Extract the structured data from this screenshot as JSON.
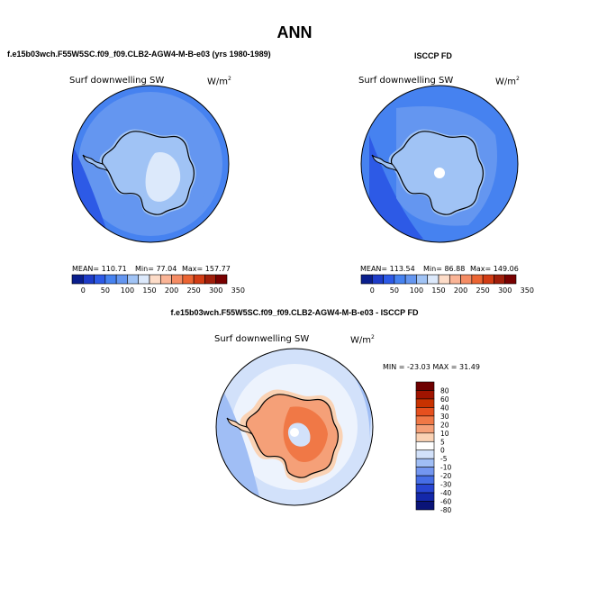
{
  "figure": {
    "title": "ANN"
  },
  "panels": [
    {
      "header": "f.e15b03wch.F55W5SC.f09_f09.CLB2-AGW4-M-B-e03 (yrs 1980-1989)",
      "field": "Surf downwelling SW",
      "units": "W/m",
      "units_exp": "2",
      "stats": {
        "mean": "MEAN= 110.71",
        "min": "Min= 77.04",
        "max": "Max= 157.77"
      },
      "colorbar_labels": [
        "0",
        "50",
        "100",
        "150",
        "200",
        "250",
        "300",
        "350"
      ]
    },
    {
      "header": "ISCCP FD",
      "field": "Surf downwelling SW",
      "units": "W/m",
      "units_exp": "2",
      "stats": {
        "mean": "MEAN= 113.54",
        "min": "Min= 86.88",
        "max": "Max= 149.06"
      },
      "colorbar_labels": [
        "0",
        "50",
        "100",
        "150",
        "200",
        "250",
        "300",
        "350"
      ]
    },
    {
      "header": "f.e15b03wch.F55W5SC.f09_f09.CLB2-AGW4-M-B-e03 - ISCCP FD",
      "field": "Surf downwelling SW",
      "units": "W/m",
      "units_exp": "2",
      "stats": {
        "minmax": "MIN = -23.03 MAX = 31.49"
      },
      "colorbar_labels": [
        "80",
        "60",
        "40",
        "30",
        "20",
        "10",
        "5",
        "0",
        "-5",
        "-10",
        "-20",
        "-30",
        "-40",
        "-60",
        "-80"
      ]
    }
  ],
  "colors": {
    "abs_scale": [
      "#0a1e8c",
      "#1e3cc8",
      "#2d5ae6",
      "#4682f0",
      "#6496f0",
      "#a0c3f5",
      "#dce9fb",
      "#fddcc8",
      "#fab496",
      "#f58c64",
      "#eb6432",
      "#d23c14",
      "#a01e0a",
      "#780000"
    ],
    "diff_scale": [
      "#6e0000",
      "#a01400",
      "#c83200",
      "#e6501e",
      "#f07846",
      "#f5a078",
      "#fad2b4",
      "#ffffff",
      "#d2e1fa",
      "#a0bef5",
      "#7396f0",
      "#466ee6",
      "#2846d2",
      "#1428aa",
      "#0a1478"
    ]
  }
}
